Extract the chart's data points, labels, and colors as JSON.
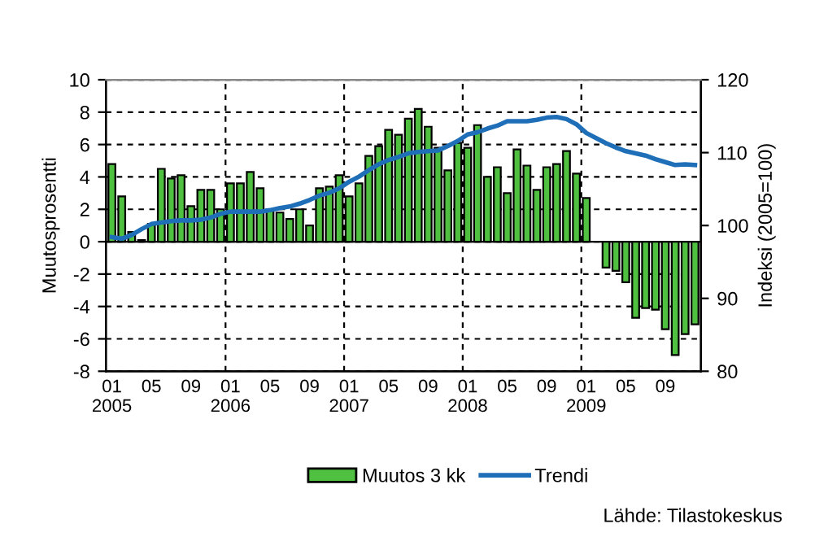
{
  "chart_data": {
    "type": "bar",
    "ylabel": "Muutosprosentti",
    "y2label": "Indeksi (2005=100)",
    "categories": [
      "01\n2005",
      null,
      null,
      null,
      "05",
      null,
      null,
      null,
      "09",
      null,
      null,
      null,
      "01\n2006",
      null,
      null,
      null,
      "05",
      null,
      null,
      null,
      "09",
      null,
      null,
      null,
      "01\n2007",
      null,
      null,
      null,
      "05",
      null,
      null,
      null,
      "09",
      null,
      null,
      null,
      "01\n2008",
      null,
      null,
      null,
      "05",
      null,
      null,
      null,
      "09",
      null,
      null,
      null,
      "01\n2009",
      null,
      null,
      null,
      "05",
      null,
      null,
      null,
      "09",
      null,
      null,
      null
    ],
    "series": [
      {
        "name": "Muutos 3 kk",
        "color": "#50c040",
        "values": [
          4.8,
          2.8,
          0.6,
          0.1,
          1.1,
          4.5,
          3.9,
          4.1,
          2.2,
          3.2,
          3.2,
          2.0,
          3.6,
          3.6,
          4.3,
          3.3,
          2.0,
          1.8,
          1.4,
          2.0,
          1.0,
          3.3,
          3.4,
          4.1,
          2.8,
          3.6,
          5.3,
          5.9,
          6.9,
          6.6,
          7.6,
          8.2,
          7.1,
          5.8,
          4.4,
          6.1,
          5.8,
          7.2,
          4.0,
          4.6,
          3.0,
          5.7,
          4.7,
          3.2,
          4.6,
          4.8,
          5.6,
          4.2,
          2.7,
          null,
          -1.6,
          -1.8,
          -2.5,
          -4.7,
          -4.1,
          -4.2,
          -5.4,
          -7.0,
          -5.7,
          -5.1
        ]
      },
      {
        "name": "Trendi",
        "type": "line",
        "axis": "y2",
        "color": "#1f6fb8",
        "values": [
          98.4,
          98.2,
          98.7,
          99.5,
          100.2,
          100.4,
          100.6,
          100.7,
          100.7,
          100.8,
          101.1,
          101.6,
          101.9,
          101.9,
          101.9,
          101.9,
          102.1,
          102.4,
          102.6,
          103.0,
          103.5,
          104.1,
          104.5,
          105.1,
          106.0,
          106.7,
          107.6,
          108.4,
          109.0,
          109.4,
          109.9,
          110.1,
          110.2,
          110.3,
          110.9,
          111.6,
          112.5,
          112.8,
          113.3,
          113.7,
          114.3,
          114.3,
          114.3,
          114.5,
          114.8,
          114.9,
          114.6,
          113.9,
          112.7,
          112.0,
          111.3,
          110.7,
          110.2,
          109.9,
          109.6,
          109.1,
          108.7,
          108.3,
          108.4,
          108.3
        ]
      }
    ],
    "ylim": [
      -8,
      10
    ],
    "yticks": [
      -8,
      -6,
      -4,
      -2,
      0,
      2,
      4,
      6,
      8,
      10
    ],
    "y2lim": [
      80,
      120
    ],
    "y2ticks": [
      80,
      90,
      100,
      110,
      120
    ],
    "grid": true,
    "legend": "bottom",
    "marker": "none",
    "line_style": "solid",
    "annotations": [
      "Lähde: Tilastokeskus"
    ]
  }
}
